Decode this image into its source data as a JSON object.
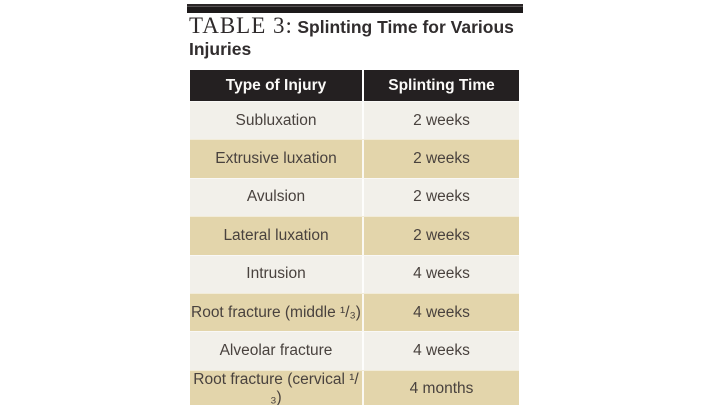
{
  "title": {
    "prefix": "TABLE 3:",
    "text": "Splinting Time for Various Injuries"
  },
  "table": {
    "columns": [
      "Type of Injury",
      "Splinting Time"
    ],
    "rows": [
      {
        "injury": "Subluxation",
        "time": "2 weeks"
      },
      {
        "injury": "Extrusive luxation",
        "time": "2 weeks"
      },
      {
        "injury": "Avulsion",
        "time": "2 weeks"
      },
      {
        "injury": "Lateral luxation",
        "time": "2 weeks"
      },
      {
        "injury": "Intrusion",
        "time": "4 weeks"
      },
      {
        "injury": "Root fracture (middle ¹/₃)",
        "time": "4 weeks"
      },
      {
        "injury": "Alveolar fracture",
        "time": "4 weeks"
      },
      {
        "injury": "Root fracture (cervical ¹/₃)",
        "time": "4 months"
      }
    ],
    "colors": {
      "header_bg": "#242021",
      "header_text": "#fbfaf8",
      "row_bg": "#f2f0ea",
      "row_alt_bg": "#e3d5ab",
      "body_text": "#49423e",
      "top_rule": "#1d1a1b"
    }
  }
}
